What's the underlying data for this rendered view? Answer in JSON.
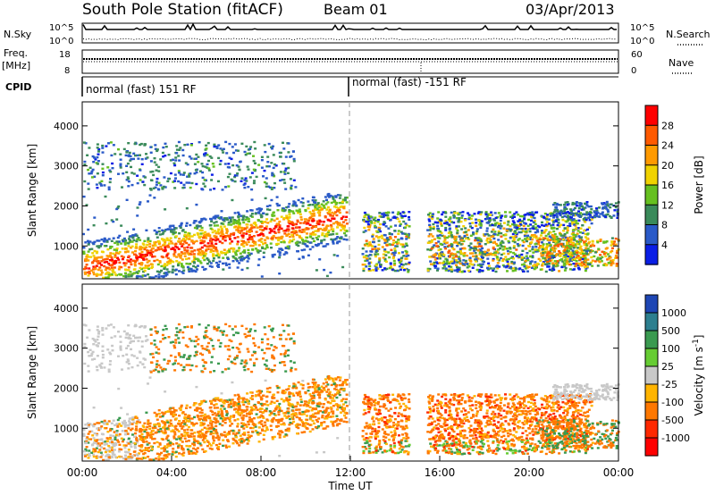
{
  "header": {
    "station": "South Pole Station (fitACF)",
    "beam": "Beam 01",
    "date": "03/Apr/2013"
  },
  "strips": {
    "nsky_label": "N.Sky",
    "nsky_ticks": [
      "10^5",
      "10^0"
    ],
    "nsearch_label": "N.Search",
    "nsearch_ticks": [
      "10^5",
      "10^0"
    ],
    "freq_label_1": "Freq.",
    "freq_label_2": "[MHz]",
    "freq_ticks": [
      "18",
      "8"
    ],
    "nave_label": "Nave",
    "nave_ticks": [
      "60",
      "0"
    ],
    "cpid_label": "CPID",
    "cpid_text_1": "normal (fast) 151 RF",
    "cpid_text_2": "normal (fast) -151 RF"
  },
  "chart_data": [
    {
      "type": "heatmap",
      "quantity": "Power",
      "xlabel": "",
      "ylabel": "Slant Range [km]",
      "x_unit": "UT hours",
      "xlim": [
        0,
        24
      ],
      "ylim": [
        180,
        4600
      ],
      "yticks": [
        1000,
        2000,
        3000,
        4000
      ],
      "ytick_labels": [
        "1000",
        "2000",
        "3000",
        "4000"
      ],
      "colorbar": {
        "label": "Power [dB]",
        "ticks": [
          4,
          8,
          12,
          16,
          20,
          24,
          28
        ],
        "tick_labels": [
          "4",
          "8",
          "12",
          "16",
          "20",
          "24",
          "28"
        ],
        "colors": [
          "#0a1ee6",
          "#2a5ac8",
          "#3a8a5a",
          "#66c020",
          "#f0d200",
          "#ff9a00",
          "#ff5a00",
          "#ff0000"
        ]
      },
      "marker_time": 12.0
    },
    {
      "type": "heatmap",
      "quantity": "Velocity",
      "xlabel": "Time UT",
      "ylabel": "Slant Range [km]",
      "x_unit": "UT hours",
      "xlim": [
        0,
        24
      ],
      "ylim": [
        180,
        4600
      ],
      "yticks": [
        1000,
        2000,
        3000,
        4000
      ],
      "ytick_labels": [
        "1000",
        "2000",
        "3000",
        "4000"
      ],
      "xticks": [
        0,
        4,
        8,
        12,
        16,
        20,
        24
      ],
      "xtick_labels": [
        "00:00",
        "04:00",
        "08:00",
        "12:00",
        "16:00",
        "20:00",
        "00:00"
      ],
      "colorbar": {
        "label": "Velocity [m s^-1]",
        "tick_labels": [
          "1000",
          "500",
          "100",
          "25",
          "-25",
          "-100",
          "-500",
          "-1000"
        ],
        "colors": [
          "#1e46b4",
          "#2d7f8f",
          "#3a9a50",
          "#66cc33",
          "#c8c8c8",
          "#ffb400",
          "#ff7800",
          "#ff2800",
          "#ff0000"
        ]
      },
      "marker_time": 12.0
    }
  ]
}
